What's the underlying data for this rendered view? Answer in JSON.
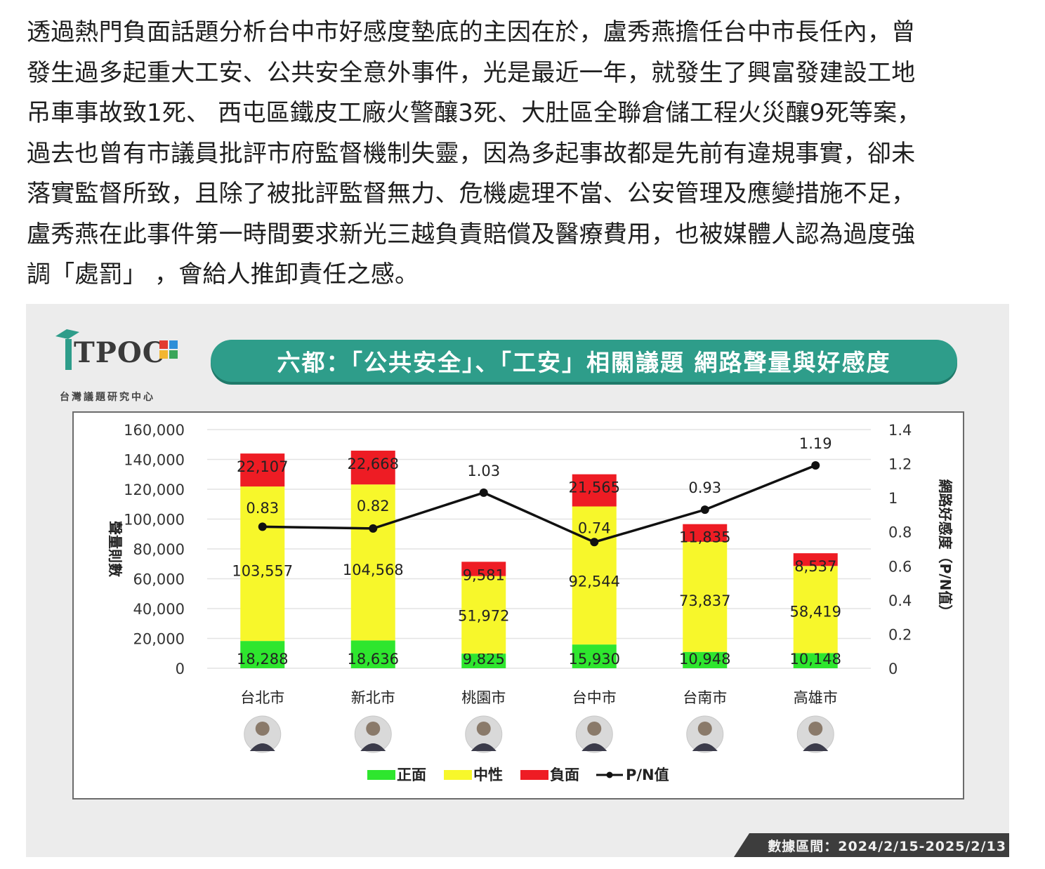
{
  "article": {
    "lines": [
      "透過熱門負面話題分析台中市好感度墊底的主因在於，盧秀燕擔任台中市長任內，曾",
      "發生過多起重大工安、公共安全意外事件，光是最近一年，就發生了興富發建設工地",
      "吊車事故致1死、 西屯區鐵皮工廠火警釀3死、大肚區全聯倉儲工程火災釀9死等案，",
      "過去也曾有市議員批評市府監督機制失靈，因為多起事故都是先前有違規事實，卻未",
      "落實監督所致，且除了被批評監督無力、危機處理不當、公安管理及應變措施不足，",
      "盧秀燕在此事件第一時間要求新光三越負責賠償及醫療費用，也被媒體人認為過度強",
      "調「處罰」 ，會給人推卸責任之感。"
    ]
  },
  "logo": {
    "word": "TPOC",
    "subtitle": "台灣議題研究中心"
  },
  "footer": {
    "range": "數據區間：2024/2/15-2025/2/13"
  },
  "colors": {
    "positive": "#2ee62e",
    "neutral": "#f7f72b",
    "negative": "#ee1c24",
    "line": "#111111",
    "banner": "#2e9d8a"
  },
  "chart_data": {
    "type": "bar",
    "title": "六都：「公共安全」、「工安」相關議題 網路聲量與好感度",
    "categories": [
      "台北市",
      "新北市",
      "桃園市",
      "台中市",
      "台南市",
      "高雄市"
    ],
    "series": [
      {
        "name": "正面",
        "values": [
          18288,
          18636,
          9825,
          15930,
          10948,
          10148
        ],
        "labels": [
          "18,288",
          "18,636",
          "9,825",
          "15,930",
          "10,948",
          "10,148"
        ]
      },
      {
        "name": "中性",
        "values": [
          103557,
          104568,
          51972,
          92544,
          73837,
          58419
        ],
        "labels": [
          "103,557",
          "104,568",
          "51,972",
          "92,544",
          "73,837",
          "58,419"
        ]
      },
      {
        "name": "負面",
        "values": [
          22107,
          22668,
          9581,
          21565,
          11835,
          8537
        ],
        "labels": [
          "22,107",
          "22,668",
          "9,581",
          "21,565",
          "11,835",
          "8,537"
        ]
      }
    ],
    "line": {
      "name": "P/N值",
      "values": [
        0.83,
        0.82,
        1.03,
        0.74,
        0.93,
        1.19
      ],
      "labels": [
        "0.83",
        "0.82",
        "1.03",
        "0.74",
        "0.93",
        "1.19"
      ]
    },
    "ylabel": "聲量則數",
    "y2label": "網路好感度（P/N值）",
    "ylim": [
      0,
      160000
    ],
    "y2lim": [
      0,
      1.4
    ],
    "yticks": [
      "0",
      "20,000",
      "40,000",
      "60,000",
      "80,000",
      "100,000",
      "120,000",
      "140,000",
      "160,000"
    ],
    "y2ticks": [
      "0",
      "0.2",
      "0.4",
      "0.6",
      "0.8",
      "1",
      "1.2",
      "1.4"
    ],
    "grid": true,
    "legend": "bottom",
    "legend_items": [
      "正面",
      "中性",
      "負面",
      "P/N值"
    ]
  }
}
